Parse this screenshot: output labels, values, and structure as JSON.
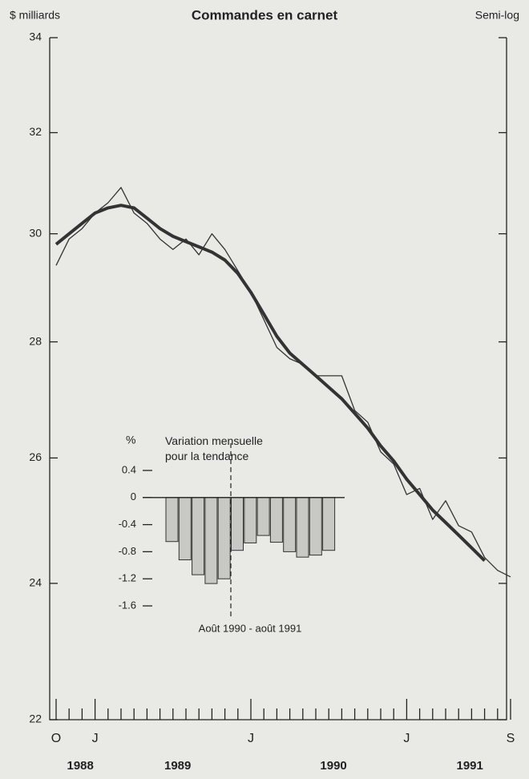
{
  "chart_data": [
    {
      "type": "line",
      "title": "Commandes en carnet",
      "y_label": "$ milliards",
      "scale_note": "Semi-log",
      "log_scale": true,
      "categories": [
        "O",
        null,
        null,
        "J",
        null,
        null,
        null,
        null,
        null,
        null,
        null,
        null,
        null,
        null,
        null,
        "J",
        null,
        null,
        null,
        null,
        null,
        null,
        null,
        null,
        null,
        null,
        null,
        "J",
        null,
        null,
        null,
        null,
        null,
        null,
        null,
        "S"
      ],
      "years": [
        {
          "label": "1988",
          "months": 3
        },
        {
          "label": "1989",
          "months": 12
        },
        {
          "label": "1990",
          "months": 12
        },
        {
          "label": "1991",
          "months": 9
        }
      ],
      "ylim": [
        22,
        34
      ],
      "yticks": [
        22,
        24,
        26,
        28,
        30,
        32,
        34
      ],
      "series": [
        {
          "name": "Commandes",
          "color": "#333333",
          "width": 1.3,
          "values": [
            29.4,
            29.9,
            30.1,
            30.4,
            30.6,
            30.9,
            30.4,
            30.2,
            29.9,
            29.7,
            29.9,
            29.6,
            30.0,
            29.7,
            29.3,
            28.9,
            28.4,
            27.9,
            27.7,
            27.6,
            27.4,
            27.4,
            27.4,
            26.8,
            26.6,
            26.1,
            25.9,
            25.4,
            25.5,
            25.0,
            25.3,
            24.9,
            24.8,
            24.4,
            24.2,
            24.1
          ]
        },
        {
          "name": "Tendance",
          "color": "#333333",
          "width": 4,
          "values": [
            29.8,
            30.0,
            30.2,
            30.4,
            30.5,
            30.55,
            30.5,
            30.3,
            30.1,
            29.95,
            29.85,
            29.75,
            29.65,
            29.5,
            29.25,
            28.9,
            28.5,
            28.1,
            27.8,
            27.6,
            27.4,
            27.2,
            27.0,
            26.75,
            26.5,
            26.2,
            25.95,
            25.65,
            25.4,
            25.15,
            24.95,
            24.75,
            24.55,
            24.35,
            null,
            null
          ]
        }
      ]
    },
    {
      "type": "bar",
      "title": "Variation mensuelle\npour la tendance",
      "y_label": "%",
      "note": "Août 1990 - août 1991",
      "categories": [
        null,
        null,
        null,
        null,
        null,
        null,
        null,
        null,
        null,
        null,
        null,
        null,
        null
      ],
      "values": [
        -0.65,
        -0.92,
        -1.14,
        -1.27,
        -1.2,
        -0.78,
        -0.67,
        -0.56,
        -0.66,
        -0.8,
        -0.88,
        -0.85,
        -0.78
      ],
      "color": "#c8c8c4",
      "ylim": [
        -1.6,
        0.4
      ],
      "yticks": [
        0.4,
        0,
        -0.4,
        -0.8,
        -1.2,
        -1.6
      ]
    }
  ]
}
